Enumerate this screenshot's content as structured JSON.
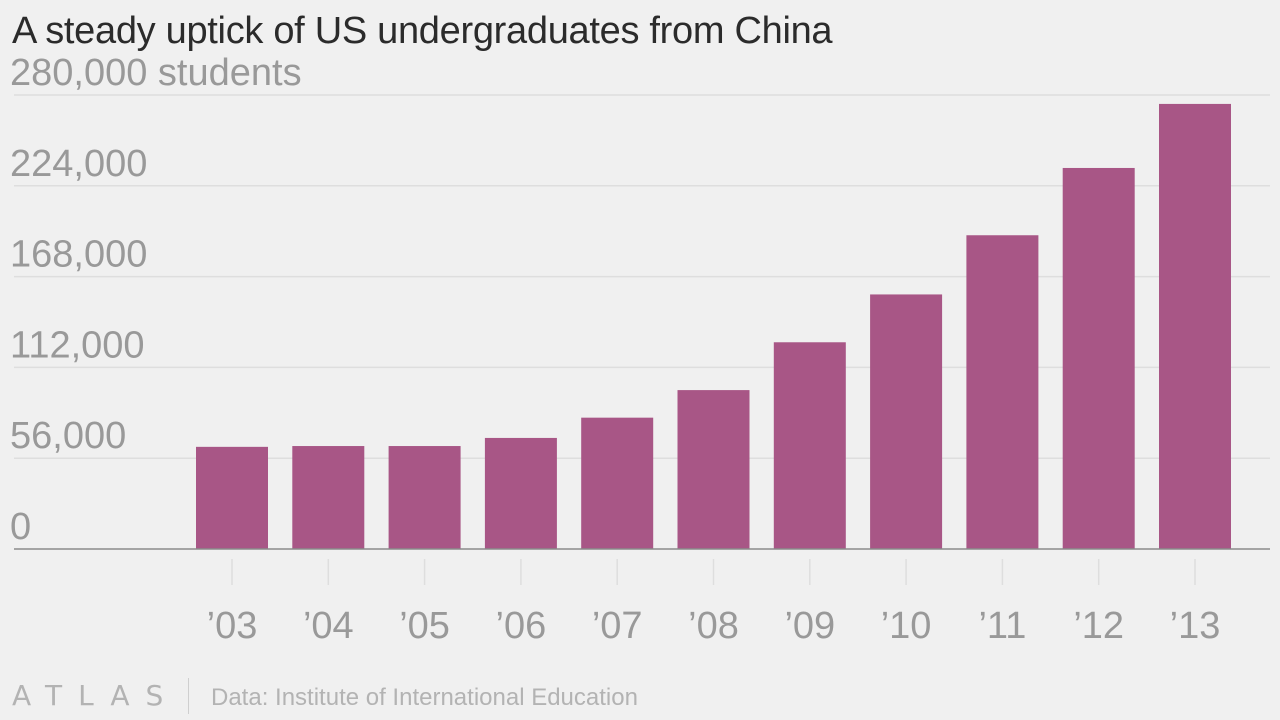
{
  "header": {
    "title": "A steady uptick of US undergraduates from China"
  },
  "footer": {
    "logo": "ATLAS",
    "source": "Data: Institute of International Education"
  },
  "colors": {
    "background": "#f0f0f0",
    "bar": "#a85686",
    "gridline": "#dedede",
    "baseline": "#8a8a8a",
    "tick_label": "#999999",
    "title": "#2b2b2b"
  },
  "chart_data": {
    "type": "bar",
    "title": "A steady uptick of US undergraduates from China",
    "xlabel": "",
    "ylabel": "",
    "categories": [
      "’03",
      "’04",
      "’05",
      "’06",
      "’07",
      "’08",
      "’09",
      "’10",
      "’11",
      "’12",
      "’13"
    ],
    "values": [
      63000,
      63500,
      63500,
      68500,
      81000,
      98000,
      127500,
      157000,
      193500,
      235000,
      274500
    ],
    "ylim": [
      0,
      280000
    ],
    "yticks": [
      0,
      56000,
      112000,
      168000,
      224000,
      280000
    ],
    "ytick_labels": [
      "0",
      "56,000",
      "112,000",
      "168,000",
      "224,000",
      "280,000 students"
    ],
    "grid": true,
    "legend": "none"
  }
}
